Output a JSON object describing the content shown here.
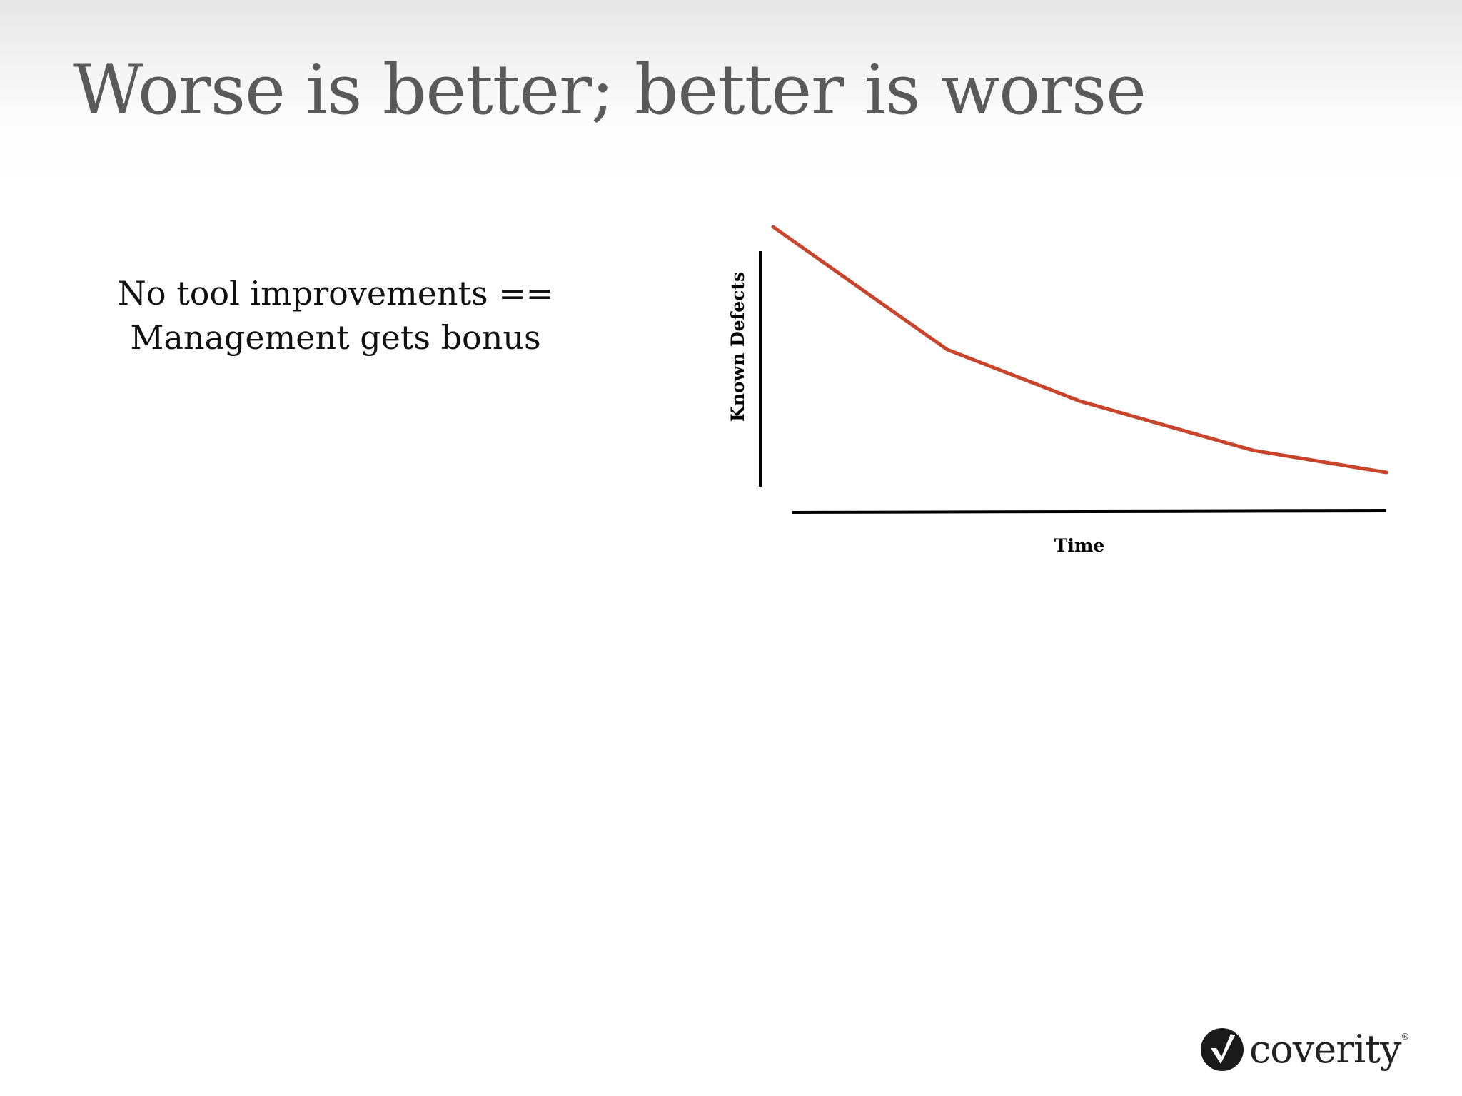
{
  "slide": {
    "title": "Worse is better; better is worse",
    "bullet_lines": [
      "No tool improvements ==",
      "Management gets bonus"
    ]
  },
  "chart_data": {
    "type": "line",
    "xlabel": "Time",
    "ylabel": "Known Defects",
    "grid": false,
    "legend": "none",
    "x": [
      0,
      1,
      2,
      3,
      4
    ],
    "series": [
      {
        "values": [
          1.0,
          0.5,
          0.29,
          0.09,
          0.0
        ],
        "color": "#c8452c"
      }
    ],
    "ylim": [
      0,
      1
    ]
  },
  "logo": {
    "wordmark": "coverity",
    "mark": "registered-mark",
    "reg": "®",
    "icon": "coverity-check-icon"
  }
}
